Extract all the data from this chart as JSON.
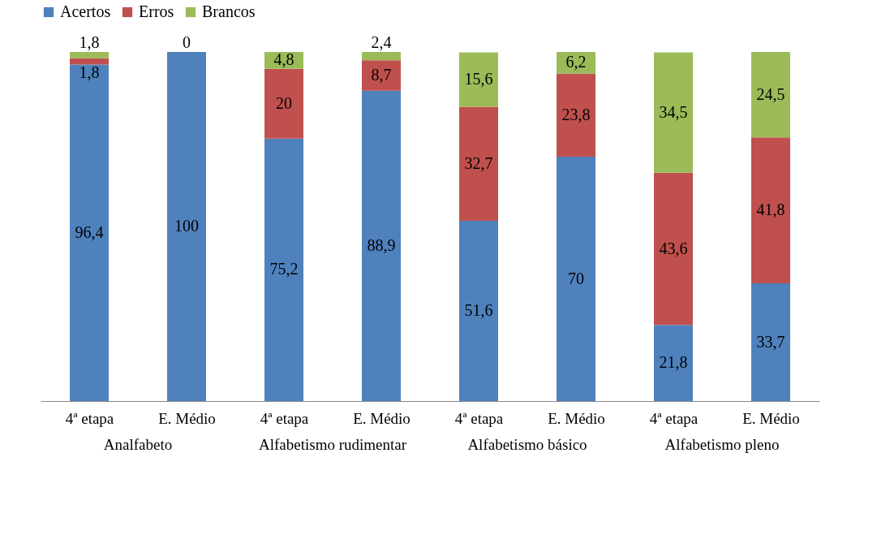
{
  "chart_data": {
    "type": "bar",
    "stacked": true,
    "legend": "top",
    "grid": false,
    "categories": [
      "4ª etapa",
      "E. Médio",
      "4ª etapa",
      "E. Médio",
      "4ª etapa",
      "E. Médio",
      "4ª etapa",
      "E. Médio"
    ],
    "annotations": [
      "Analfabeto",
      "Alfabetismo rudimentar",
      "Alfabetismo básico",
      "Alfabetismo pleno"
    ],
    "ylim": [
      0,
      100
    ],
    "tick_labels": "x",
    "series": [
      {
        "name": "Acertos",
        "color": "#4f81bd",
        "values": [
          96.4,
          100,
          75.2,
          88.9,
          51.6,
          70,
          21.8,
          33.7
        ],
        "value_labels": [
          "96,4",
          "100",
          "75,2",
          "88,9",
          "51,6",
          "70",
          "21,8",
          "33,7"
        ]
      },
      {
        "name": "Erros",
        "color": "#c0504d",
        "values": [
          1.8,
          0,
          20,
          8.7,
          32.7,
          23.8,
          43.6,
          41.8
        ],
        "value_labels": [
          "1,8",
          "0",
          "20",
          "8,7",
          "32,7",
          "23,8",
          "43,6",
          "41,8"
        ]
      },
      {
        "name": "Brancos",
        "color": "#9bbb59",
        "values": [
          1.8,
          null,
          4.8,
          2.4,
          15.6,
          6.2,
          34.5,
          24.5
        ],
        "value_labels": [
          "1,8",
          null,
          "4,8",
          "2,4",
          "15,6",
          "6,2",
          "34,5",
          "24,5"
        ]
      }
    ]
  }
}
